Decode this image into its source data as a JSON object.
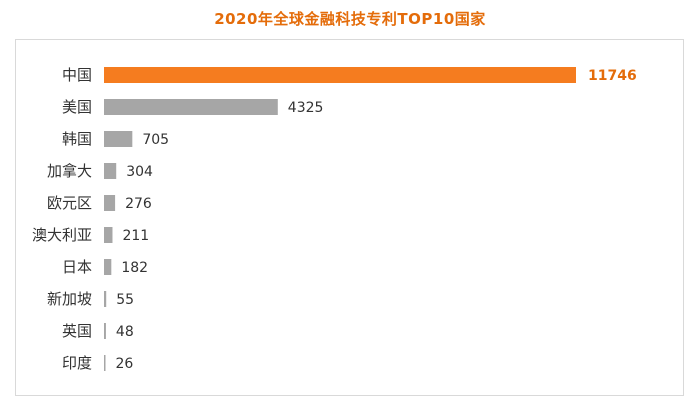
{
  "chart_data": {
    "type": "bar",
    "orientation": "horizontal",
    "title": "2020年全球金融科技专利TOP10国家",
    "categories": [
      "中国",
      "美国",
      "韩国",
      "加拿大",
      "欧元区",
      "澳大利亚",
      "日本",
      "新加坡",
      "英国",
      "印度"
    ],
    "values": [
      11746,
      4325,
      705,
      304,
      276,
      211,
      182,
      55,
      48,
      26
    ],
    "xlim": [
      0,
      11746
    ],
    "grid": false,
    "legend": "none",
    "colors": {
      "highlight": "#f57c1f",
      "default": "#a6a6a6",
      "highlight_label": "#e46c0a",
      "title": "#e46c0a"
    },
    "highlight_index": 0
  }
}
